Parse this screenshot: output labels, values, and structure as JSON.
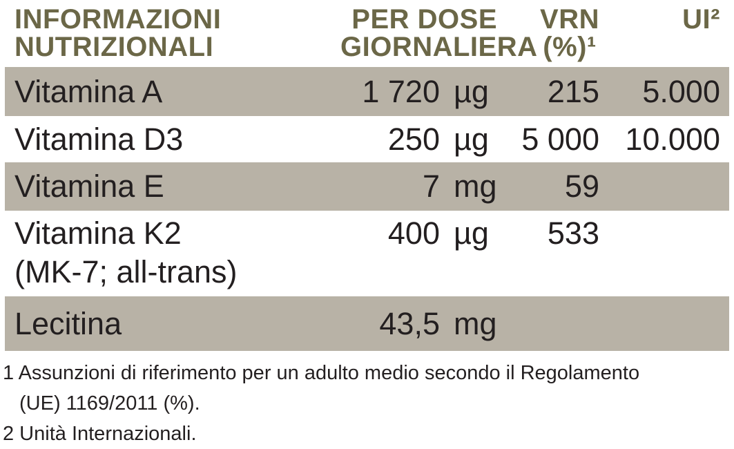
{
  "colors": {
    "header_text": "#6b6747",
    "row_band": "#b8b2a6",
    "body_text": "#231f20",
    "background": "#ffffff"
  },
  "table": {
    "header": {
      "label_lines": [
        "INFORMAZIONI",
        "NUTRIZIONALI"
      ],
      "dose_lines": [
        "PER DOSE",
        "GIORNALIERA"
      ],
      "vrn_lines": [
        "VRN",
        "(%)¹"
      ],
      "ui": "UI²"
    },
    "rows": [
      {
        "label": "Vitamina A",
        "label2": "",
        "value": "1 720",
        "unit": "µg",
        "vrn": "215",
        "ui": "5.000"
      },
      {
        "label": "Vitamina D3",
        "label2": "",
        "value": "250",
        "unit": "µg",
        "vrn": "5 000",
        "ui": "10.000"
      },
      {
        "label": "Vitamina E",
        "label2": "",
        "value": "7",
        "unit": "mg",
        "vrn": "59",
        "ui": ""
      },
      {
        "label": "Vitamina K2",
        "label2": "(MK-7; all-trans)",
        "value": "400",
        "unit": "µg",
        "vrn": "533",
        "ui": ""
      },
      {
        "label": "Lecitina",
        "label2": "",
        "value": "43,5",
        "unit": "mg",
        "vrn": "",
        "ui": ""
      }
    ]
  },
  "footnotes": {
    "note1_line1": "1 Assunzioni di riferimento per un adulto medio secondo il Regolamento",
    "note1_line2": "(UE) 1169/2011 (%).",
    "note2_line1": "2 Unità Internazionali."
  }
}
